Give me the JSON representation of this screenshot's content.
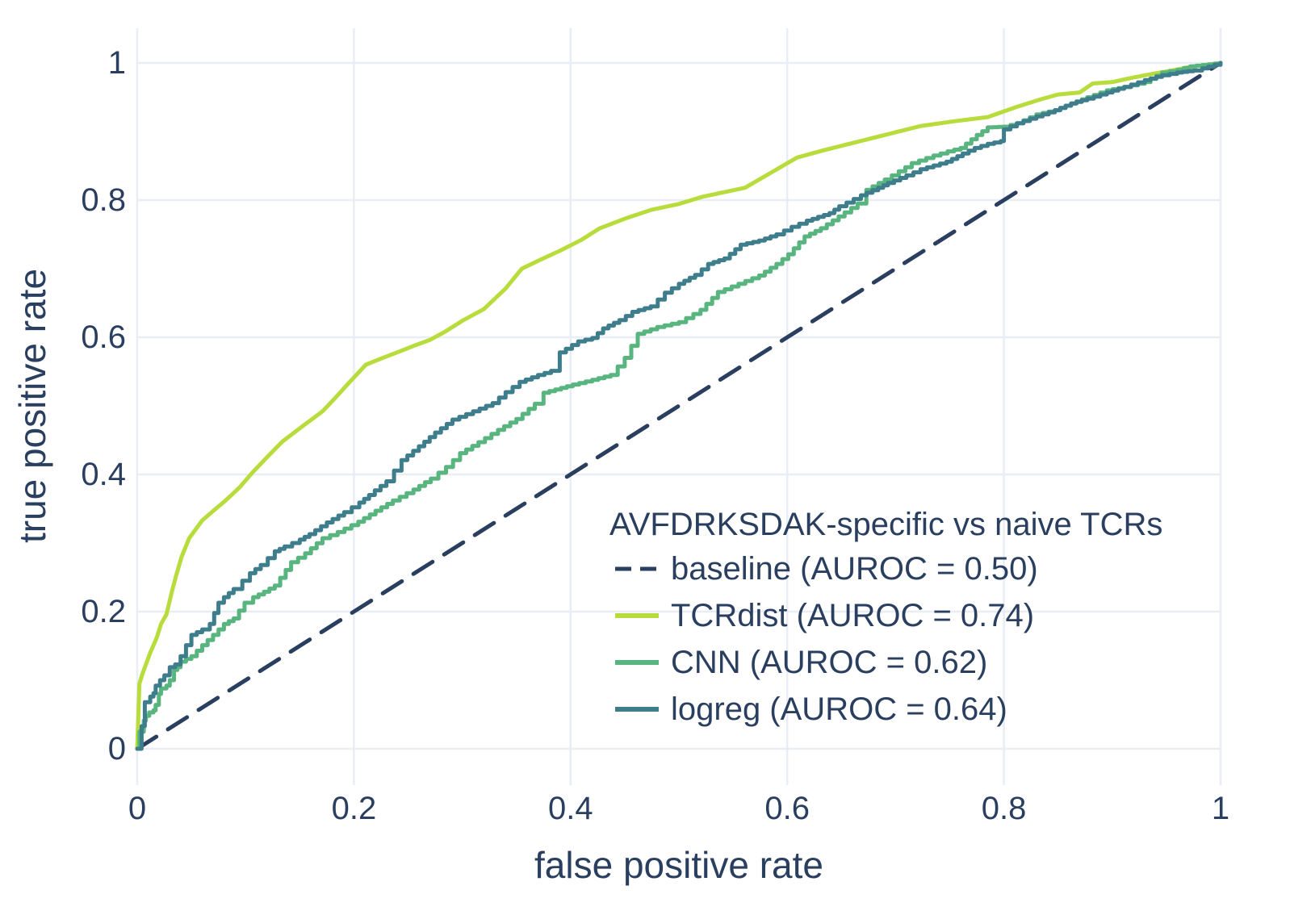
{
  "colors": {
    "text": "#2a3f5f",
    "grid": "#e9eef6",
    "background": "#ffffff",
    "baseline": "#2a3f5f",
    "tcrdist": "#b8dc3c",
    "cnn": "#59b57f",
    "logreg": "#3e7d8b"
  },
  "chart_data": {
    "type": "line",
    "subtype": "roc-curves",
    "legend_title": "AVFDRKSDAK-specific vs naive TCRs",
    "xlabel": "false positive rate",
    "ylabel": "true positive rate",
    "xlim": [
      0,
      1
    ],
    "ylim": [
      0,
      1
    ],
    "grid": true,
    "legend_position": "inside lower right",
    "x_tick_labels": [
      "0",
      "0.2",
      "0.4",
      "0.6",
      "0.8",
      "1"
    ],
    "y_tick_labels": [
      "0",
      "0.2",
      "0.4",
      "0.6",
      "0.8",
      "1"
    ],
    "x_ticks": [
      0,
      0.2,
      0.4,
      0.6,
      0.8,
      1
    ],
    "y_ticks": [
      0,
      0.2,
      0.4,
      0.6,
      0.8,
      1
    ],
    "series": [
      {
        "key": "baseline",
        "name": "baseline (AUROC = 0.50)",
        "auroc": 0.5,
        "color": "#2a3f5f",
        "dash": true,
        "style": "line",
        "points": [
          [
            0,
            0
          ],
          [
            1,
            1
          ]
        ]
      },
      {
        "key": "TCRdist",
        "name": "TCRdist (AUROC = 0.74)",
        "auroc": 0.74,
        "color": "#b8dc3c",
        "dash": false,
        "style": "line",
        "points": [
          [
            0,
            0
          ],
          [
            0.002,
            0.095
          ],
          [
            0.005,
            0.11
          ],
          [
            0.012,
            0.14
          ],
          [
            0.018,
            0.162
          ],
          [
            0.022,
            0.182
          ],
          [
            0.027,
            0.196
          ],
          [
            0.032,
            0.229
          ],
          [
            0.036,
            0.253
          ],
          [
            0.041,
            0.28
          ],
          [
            0.048,
            0.307
          ],
          [
            0.06,
            0.333
          ],
          [
            0.071,
            0.348
          ],
          [
            0.08,
            0.36
          ],
          [
            0.087,
            0.37
          ],
          [
            0.095,
            0.382
          ],
          [
            0.107,
            0.404
          ],
          [
            0.121,
            0.427
          ],
          [
            0.134,
            0.448
          ],
          [
            0.154,
            0.472
          ],
          [
            0.171,
            0.492
          ],
          [
            0.183,
            0.512
          ],
          [
            0.194,
            0.531
          ],
          [
            0.211,
            0.56
          ],
          [
            0.225,
            0.569
          ],
          [
            0.24,
            0.578
          ],
          [
            0.256,
            0.588
          ],
          [
            0.27,
            0.596
          ],
          [
            0.285,
            0.609
          ],
          [
            0.3,
            0.624
          ],
          [
            0.32,
            0.641
          ],
          [
            0.34,
            0.671
          ],
          [
            0.355,
            0.7
          ],
          [
            0.372,
            0.713
          ],
          [
            0.39,
            0.726
          ],
          [
            0.41,
            0.742
          ],
          [
            0.427,
            0.759
          ],
          [
            0.452,
            0.774
          ],
          [
            0.475,
            0.786
          ],
          [
            0.499,
            0.794
          ],
          [
            0.522,
            0.805
          ],
          [
            0.543,
            0.812
          ],
          [
            0.561,
            0.818
          ],
          [
            0.585,
            0.84
          ],
          [
            0.609,
            0.862
          ],
          [
            0.632,
            0.872
          ],
          [
            0.655,
            0.881
          ],
          [
            0.69,
            0.895
          ],
          [
            0.723,
            0.908
          ],
          [
            0.754,
            0.915
          ],
          [
            0.785,
            0.921
          ],
          [
            0.812,
            0.936
          ],
          [
            0.834,
            0.947
          ],
          [
            0.85,
            0.954
          ],
          [
            0.87,
            0.957
          ],
          [
            0.882,
            0.97
          ],
          [
            0.9,
            0.972
          ],
          [
            0.92,
            0.979
          ],
          [
            0.937,
            0.984
          ],
          [
            0.955,
            0.989
          ],
          [
            0.971,
            0.994
          ],
          [
            1,
            1
          ]
        ]
      },
      {
        "key": "CNN",
        "name": "CNN (AUROC = 0.62)",
        "auroc": 0.62,
        "color": "#59b57f",
        "dash": false,
        "style": "step",
        "points": [
          [
            0,
            0
          ],
          [
            0.002,
            0.025
          ],
          [
            0.006,
            0.041
          ],
          [
            0.008,
            0.048
          ],
          [
            0.011,
            0.053
          ],
          [
            0.015,
            0.056
          ],
          [
            0.017,
            0.064
          ],
          [
            0.02,
            0.08
          ],
          [
            0.022,
            0.088
          ],
          [
            0.027,
            0.092
          ],
          [
            0.03,
            0.1
          ],
          [
            0.034,
            0.115
          ],
          [
            0.037,
            0.119
          ],
          [
            0.04,
            0.127
          ],
          [
            0.05,
            0.135
          ],
          [
            0.06,
            0.151
          ],
          [
            0.07,
            0.166
          ],
          [
            0.08,
            0.182
          ],
          [
            0.089,
            0.19
          ],
          [
            0.099,
            0.213
          ],
          [
            0.107,
            0.221
          ],
          [
            0.117,
            0.229
          ],
          [
            0.127,
            0.238
          ],
          [
            0.142,
            0.272
          ],
          [
            0.155,
            0.285
          ],
          [
            0.171,
            0.307
          ],
          [
            0.185,
            0.316
          ],
          [
            0.204,
            0.331
          ],
          [
            0.22,
            0.347
          ],
          [
            0.236,
            0.362
          ],
          [
            0.255,
            0.378
          ],
          [
            0.271,
            0.394
          ],
          [
            0.285,
            0.411
          ],
          [
            0.298,
            0.431
          ],
          [
            0.315,
            0.447
          ],
          [
            0.333,
            0.465
          ],
          [
            0.35,
            0.481
          ],
          [
            0.367,
            0.503
          ],
          [
            0.375,
            0.519
          ],
          [
            0.402,
            0.531
          ],
          [
            0.42,
            0.538
          ],
          [
            0.437,
            0.545
          ],
          [
            0.45,
            0.57
          ],
          [
            0.462,
            0.605
          ],
          [
            0.48,
            0.615
          ],
          [
            0.5,
            0.622
          ],
          [
            0.52,
            0.64
          ],
          [
            0.536,
            0.666
          ],
          [
            0.555,
            0.678
          ],
          [
            0.574,
            0.69
          ],
          [
            0.59,
            0.707
          ],
          [
            0.601,
            0.721
          ],
          [
            0.616,
            0.747
          ],
          [
            0.631,
            0.759
          ],
          [
            0.653,
            0.782
          ],
          [
            0.665,
            0.795
          ],
          [
            0.673,
            0.815
          ],
          [
            0.69,
            0.83
          ],
          [
            0.703,
            0.842
          ],
          [
            0.715,
            0.854
          ],
          [
            0.735,
            0.865
          ],
          [
            0.748,
            0.871
          ],
          [
            0.76,
            0.876
          ],
          [
            0.775,
            0.895
          ],
          [
            0.785,
            0.906
          ],
          [
            0.8,
            0.907
          ],
          [
            0.812,
            0.912
          ],
          [
            0.83,
            0.925
          ],
          [
            0.847,
            0.931
          ],
          [
            0.862,
            0.941
          ],
          [
            0.877,
            0.95
          ],
          [
            0.895,
            0.96
          ],
          [
            0.911,
            0.965
          ],
          [
            0.93,
            0.972
          ],
          [
            0.946,
            0.986
          ],
          [
            0.96,
            0.99
          ],
          [
            0.972,
            0.995
          ],
          [
            1,
            1
          ]
        ]
      },
      {
        "key": "logreg",
        "name": "logreg (AUROC = 0.64)",
        "auroc": 0.64,
        "color": "#3e7d8b",
        "dash": false,
        "style": "step",
        "points": [
          [
            0,
            0
          ],
          [
            0.004,
            0.033
          ],
          [
            0.007,
            0.068
          ],
          [
            0.012,
            0.076
          ],
          [
            0.015,
            0.081
          ],
          [
            0.017,
            0.092
          ],
          [
            0.021,
            0.1
          ],
          [
            0.025,
            0.107
          ],
          [
            0.03,
            0.119
          ],
          [
            0.035,
            0.123
          ],
          [
            0.04,
            0.135
          ],
          [
            0.045,
            0.151
          ],
          [
            0.05,
            0.166
          ],
          [
            0.06,
            0.174
          ],
          [
            0.067,
            0.182
          ],
          [
            0.071,
            0.198
          ],
          [
            0.075,
            0.213
          ],
          [
            0.08,
            0.221
          ],
          [
            0.089,
            0.233
          ],
          [
            0.097,
            0.245
          ],
          [
            0.104,
            0.256
          ],
          [
            0.114,
            0.268
          ],
          [
            0.127,
            0.288
          ],
          [
            0.136,
            0.295
          ],
          [
            0.15,
            0.305
          ],
          [
            0.159,
            0.313
          ],
          [
            0.175,
            0.33
          ],
          [
            0.191,
            0.345
          ],
          [
            0.205,
            0.359
          ],
          [
            0.214,
            0.37
          ],
          [
            0.23,
            0.39
          ],
          [
            0.244,
            0.421
          ],
          [
            0.26,
            0.441
          ],
          [
            0.275,
            0.461
          ],
          [
            0.291,
            0.48
          ],
          [
            0.31,
            0.492
          ],
          [
            0.328,
            0.504
          ],
          [
            0.34,
            0.52
          ],
          [
            0.353,
            0.535
          ],
          [
            0.37,
            0.545
          ],
          [
            0.382,
            0.551
          ],
          [
            0.39,
            0.578
          ],
          [
            0.407,
            0.594
          ],
          [
            0.42,
            0.599
          ],
          [
            0.43,
            0.613
          ],
          [
            0.445,
            0.625
          ],
          [
            0.457,
            0.637
          ],
          [
            0.474,
            0.645
          ],
          [
            0.487,
            0.665
          ],
          [
            0.5,
            0.678
          ],
          [
            0.515,
            0.691
          ],
          [
            0.527,
            0.707
          ],
          [
            0.542,
            0.715
          ],
          [
            0.557,
            0.735
          ],
          [
            0.574,
            0.741
          ],
          [
            0.59,
            0.75
          ],
          [
            0.604,
            0.761
          ],
          [
            0.618,
            0.77
          ],
          [
            0.639,
            0.781
          ],
          [
            0.648,
            0.791
          ],
          [
            0.668,
            0.807
          ],
          [
            0.684,
            0.818
          ],
          [
            0.693,
            0.825
          ],
          [
            0.71,
            0.836
          ],
          [
            0.723,
            0.845
          ],
          [
            0.747,
            0.856
          ],
          [
            0.762,
            0.868
          ],
          [
            0.773,
            0.876
          ],
          [
            0.785,
            0.882
          ],
          [
            0.797,
            0.886
          ],
          [
            0.8,
            0.903
          ],
          [
            0.812,
            0.912
          ],
          [
            0.83,
            0.922
          ],
          [
            0.847,
            0.931
          ],
          [
            0.862,
            0.941
          ],
          [
            0.877,
            0.948
          ],
          [
            0.895,
            0.957
          ],
          [
            0.911,
            0.965
          ],
          [
            0.93,
            0.975
          ],
          [
            0.946,
            0.982
          ],
          [
            0.96,
            0.986
          ],
          [
            0.975,
            0.989
          ],
          [
            0.983,
            0.992
          ],
          [
            1,
            1
          ]
        ]
      }
    ]
  }
}
